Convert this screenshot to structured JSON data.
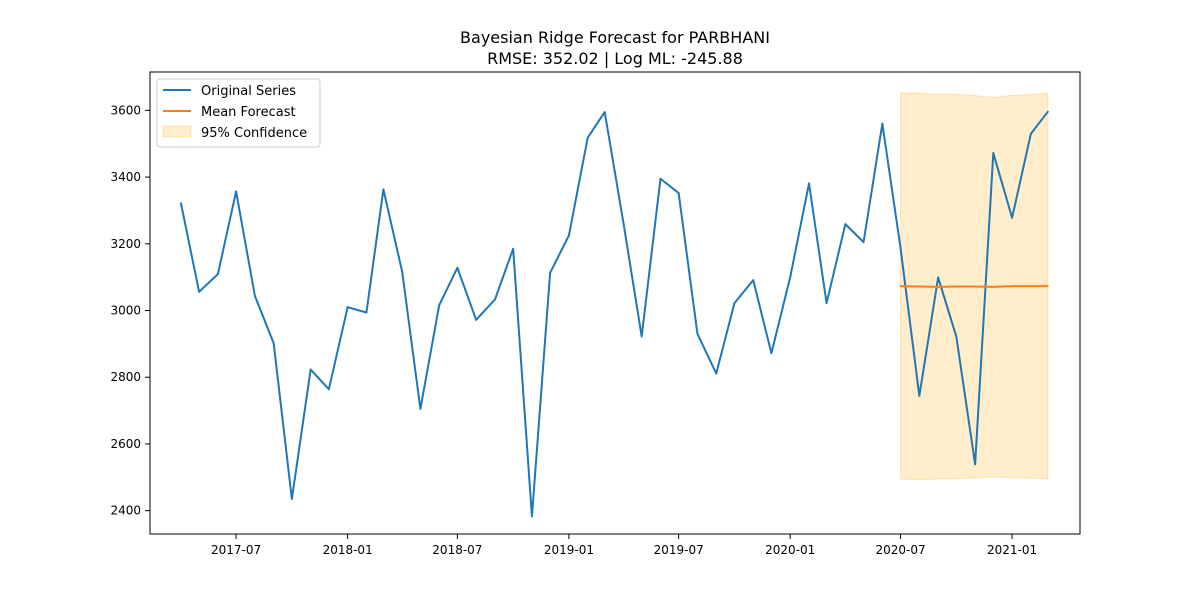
{
  "chart_data": {
    "type": "line",
    "title": "Bayesian Ridge Forecast for PARBHANI",
    "subtitle": "RMSE: 352.02 | Log ML: -245.88",
    "xlabel": "",
    "ylabel": "",
    "xlim": [
      "2017-02-09",
      "2021-04-23"
    ],
    "ylim": [
      2330,
      3715
    ],
    "grid": false,
    "legend_position": "upper-left",
    "x_ticks": [
      "2017-07-01",
      "2018-01-01",
      "2018-07-01",
      "2019-01-01",
      "2019-07-01",
      "2020-01-01",
      "2020-07-01",
      "2021-01-01"
    ],
    "x_tick_labels": [
      "2017-07",
      "2018-01",
      "2018-07",
      "2019-01",
      "2019-07",
      "2020-01",
      "2020-07",
      "2021-01"
    ],
    "y_ticks": [
      2400,
      2600,
      2800,
      3000,
      3200,
      3400,
      3600
    ],
    "y_tick_labels": [
      "2400",
      "2600",
      "2800",
      "3000",
      "3200",
      "3400",
      "3600"
    ],
    "series": [
      {
        "name": "Original Series",
        "color": "#1f77b4",
        "kind": "line",
        "points": [
          [
            "2017-04-01",
            3322
          ],
          [
            "2017-05-01",
            3056
          ],
          [
            "2017-06-01",
            3109
          ],
          [
            "2017-07-01",
            3357
          ],
          [
            "2017-08-01",
            3044
          ],
          [
            "2017-09-01",
            2902
          ],
          [
            "2017-10-01",
            2435
          ],
          [
            "2017-11-01",
            2823
          ],
          [
            "2017-12-01",
            2764
          ],
          [
            "2018-01-01",
            3010
          ],
          [
            "2018-02-01",
            2994
          ],
          [
            "2018-03-01",
            3363
          ],
          [
            "2018-04-01",
            3116
          ],
          [
            "2018-05-01",
            2705
          ],
          [
            "2018-06-01",
            3016
          ],
          [
            "2018-07-01",
            3128
          ],
          [
            "2018-08-01",
            2972
          ],
          [
            "2018-09-01",
            3033
          ],
          [
            "2018-10-01",
            3185
          ],
          [
            "2018-11-01",
            2383
          ],
          [
            "2018-12-01",
            3113
          ],
          [
            "2019-01-01",
            3225
          ],
          [
            "2019-02-01",
            3518
          ],
          [
            "2019-03-01",
            3595
          ],
          [
            "2019-04-01",
            3262
          ],
          [
            "2019-05-01",
            2922
          ],
          [
            "2019-06-01",
            3395
          ],
          [
            "2019-07-01",
            3352
          ],
          [
            "2019-08-01",
            2930
          ],
          [
            "2019-09-01",
            2811
          ],
          [
            "2019-10-01",
            3022
          ],
          [
            "2019-11-01",
            3091
          ],
          [
            "2019-12-01",
            2872
          ],
          [
            "2020-01-01",
            3100
          ],
          [
            "2020-02-01",
            3381
          ],
          [
            "2020-03-01",
            3022
          ],
          [
            "2020-04-01",
            3259
          ],
          [
            "2020-05-01",
            3205
          ],
          [
            "2020-06-01",
            3560
          ],
          [
            "2020-07-01",
            3187
          ],
          [
            "2020-08-01",
            2744
          ],
          [
            "2020-09-01",
            3099
          ],
          [
            "2020-10-01",
            2922
          ],
          [
            "2020-11-01",
            2539
          ],
          [
            "2020-12-01",
            3472
          ],
          [
            "2021-01-01",
            3278
          ],
          [
            "2021-02-01",
            3530
          ],
          [
            "2021-03-01",
            3596
          ]
        ]
      },
      {
        "name": "Mean Forecast",
        "color": "#ff7f0e",
        "kind": "line",
        "points": [
          [
            "2020-07-01",
            3073
          ],
          [
            "2020-08-01",
            3072
          ],
          [
            "2020-09-01",
            3071
          ],
          [
            "2020-10-01",
            3072
          ],
          [
            "2020-11-01",
            3072
          ],
          [
            "2020-12-01",
            3071
          ],
          [
            "2021-01-01",
            3073
          ],
          [
            "2021-02-01",
            3073
          ],
          [
            "2021-03-01",
            3073
          ]
        ]
      },
      {
        "name": "95% Confidence",
        "color": "#ffa500",
        "kind": "band",
        "points": [
          [
            "2020-07-01",
            2495,
            3652
          ],
          [
            "2020-08-01",
            2493,
            3652
          ],
          [
            "2020-09-01",
            2495,
            3648
          ],
          [
            "2020-10-01",
            2496,
            3648
          ],
          [
            "2020-11-01",
            2498,
            3644
          ],
          [
            "2020-12-01",
            2501,
            3639
          ],
          [
            "2021-01-01",
            2499,
            3645
          ],
          [
            "2021-02-01",
            2497,
            3647
          ],
          [
            "2021-03-01",
            2495,
            3652
          ]
        ]
      }
    ]
  }
}
